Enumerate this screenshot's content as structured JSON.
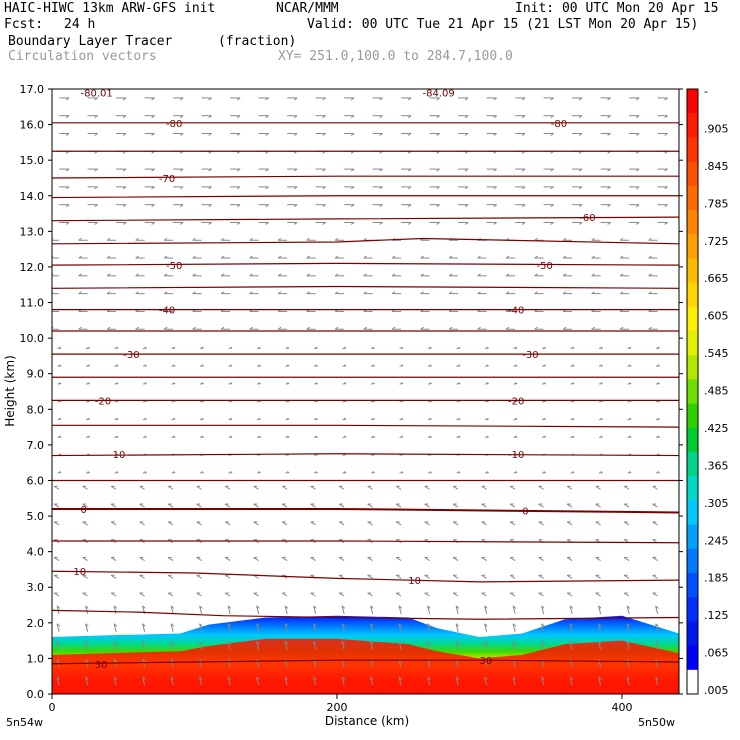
{
  "header": {
    "model": "HAIC-HIWC 13km ARW-GFS init",
    "org": "NCAR/MMM",
    "init": "Init: 00 UTC Mon 20 Apr 15",
    "fcst_label": "Fcst:",
    "fcst_value": "24 h",
    "valid": "Valid: 00 UTC Tue 21 Apr 15 (21 LST Mon 20 Apr 15)",
    "field": "Boundary Layer Tracer",
    "field_units": "(fraction)",
    "overlay": "Circulation vectors",
    "xy": "XY= 251.0,100.0 to 284.7,100.0"
  },
  "chart_data": {
    "type": "heatmap",
    "xlabel": "Distance (km)",
    "ylabel": "Height (km)",
    "xlim": [
      0,
      440
    ],
    "ylim": [
      0,
      17
    ],
    "x_ticks": [
      0,
      200,
      400
    ],
    "y_ticks": [
      "0.0",
      "1.0",
      "2.0",
      "3.0",
      "4.0",
      "5.0",
      "6.0",
      "7.0",
      "8.0",
      "9.0",
      "10.0",
      "11.0",
      "12.0",
      "13.0",
      "14.0",
      "15.0",
      "16.0",
      "17.0"
    ],
    "x_end_labels": {
      "left": "5n54w",
      "right": "5n50w"
    },
    "colorbar": {
      "labels": [
        "-",
        ".905",
        ".845",
        ".785",
        ".725",
        ".665",
        ".605",
        ".545",
        ".485",
        ".425",
        ".365",
        ".305",
        ".245",
        ".185",
        ".125",
        ".065",
        ".005"
      ],
      "colors": [
        "#ff0000",
        "#ff1a00",
        "#ff3300",
        "#ff5000",
        "#ff6a00",
        "#ff8500",
        "#ffa000",
        "#ffbb00",
        "#ffd500",
        "#ffee00",
        "#e0f000",
        "#b0e800",
        "#70dd00",
        "#30d000",
        "#00cc33",
        "#00d48a",
        "#00d8c8",
        "#00c8ff",
        "#00a0ff",
        "#0078ff",
        "#0050ff",
        "#0030ff",
        "#0018f0",
        "#0000ff",
        "#ffffff"
      ]
    },
    "tracer_top_km": [
      {
        "x": 0,
        "top": 1.6,
        "mid": 1.1
      },
      {
        "x": 40,
        "top": 1.65,
        "mid": 1.15
      },
      {
        "x": 90,
        "top": 1.7,
        "mid": 1.2
      },
      {
        "x": 110,
        "top": 1.95,
        "mid": 1.35
      },
      {
        "x": 150,
        "top": 2.15,
        "mid": 1.55
      },
      {
        "x": 200,
        "top": 2.2,
        "mid": 1.55
      },
      {
        "x": 250,
        "top": 2.15,
        "mid": 1.4
      },
      {
        "x": 270,
        "top": 1.85,
        "mid": 1.2
      },
      {
        "x": 300,
        "top": 1.6,
        "mid": 1.0
      },
      {
        "x": 330,
        "top": 1.7,
        "mid": 1.1
      },
      {
        "x": 360,
        "top": 2.1,
        "mid": 1.4
      },
      {
        "x": 400,
        "top": 2.2,
        "mid": 1.5
      },
      {
        "x": 440,
        "top": 1.7,
        "mid": 1.15
      }
    ],
    "temperature_contours": [
      {
        "label": "30",
        "points": [
          [
            0,
            0.85
          ],
          [
            100,
            0.9
          ],
          [
            200,
            0.95
          ],
          [
            300,
            0.95
          ],
          [
            440,
            0.9
          ]
        ],
        "label_positions": [
          [
            30,
            0.85
          ],
          [
            300,
            0.95
          ]
        ]
      },
      {
        "label": "",
        "points": [
          [
            0,
            2.35
          ],
          [
            60,
            2.3
          ],
          [
            120,
            2.2
          ],
          [
            200,
            2.15
          ],
          [
            300,
            2.1
          ],
          [
            440,
            2.15
          ]
        ],
        "label_positions": []
      },
      {
        "label": "10",
        "points": [
          [
            0,
            3.45
          ],
          [
            100,
            3.4
          ],
          [
            200,
            3.25
          ],
          [
            300,
            3.15
          ],
          [
            440,
            3.2
          ]
        ],
        "label_positions": [
          [
            15,
            3.45
          ],
          [
            250,
            3.2
          ]
        ]
      },
      {
        "label": "",
        "points": [
          [
            0,
            4.3
          ],
          [
            200,
            4.3
          ],
          [
            440,
            4.25
          ]
        ],
        "label_positions": []
      },
      {
        "label": "0",
        "points": [
          [
            0,
            5.2
          ],
          [
            200,
            5.2
          ],
          [
            440,
            5.1
          ]
        ],
        "label_positions": [
          [
            20,
            5.2
          ],
          [
            330,
            5.15
          ]
        ]
      },
      {
        "label": "",
        "points": [
          [
            0,
            6.0
          ],
          [
            200,
            6.0
          ],
          [
            440,
            6.0
          ]
        ],
        "label_positions": []
      },
      {
        "label": "-10",
        "points": [
          [
            0,
            6.7
          ],
          [
            200,
            6.75
          ],
          [
            440,
            6.7
          ]
        ],
        "label_positions": [
          [
            40,
            6.75
          ],
          [
            320,
            6.75
          ]
        ]
      },
      {
        "label": "",
        "points": [
          [
            0,
            7.55
          ],
          [
            200,
            7.55
          ],
          [
            440,
            7.5
          ]
        ],
        "label_positions": []
      },
      {
        "label": "-20",
        "points": [
          [
            0,
            8.25
          ],
          [
            200,
            8.25
          ],
          [
            440,
            8.25
          ]
        ],
        "label_positions": [
          [
            30,
            8.25
          ],
          [
            320,
            8.25
          ]
        ]
      },
      {
        "label": "",
        "points": [
          [
            0,
            8.9
          ],
          [
            200,
            8.9
          ],
          [
            440,
            8.9
          ]
        ],
        "label_positions": []
      },
      {
        "label": "-30",
        "points": [
          [
            0,
            9.55
          ],
          [
            200,
            9.55
          ],
          [
            440,
            9.55
          ]
        ],
        "label_positions": [
          [
            50,
            9.55
          ],
          [
            330,
            9.55
          ]
        ]
      },
      {
        "label": "",
        "points": [
          [
            0,
            10.2
          ],
          [
            200,
            10.2
          ],
          [
            440,
            10.2
          ]
        ],
        "label_positions": []
      },
      {
        "label": "-40",
        "points": [
          [
            0,
            10.8
          ],
          [
            200,
            10.8
          ],
          [
            440,
            10.8
          ]
        ],
        "label_positions": [
          [
            75,
            10.8
          ],
          [
            320,
            10.8
          ]
        ]
      },
      {
        "label": "",
        "points": [
          [
            0,
            11.4
          ],
          [
            200,
            11.45
          ],
          [
            440,
            11.4
          ]
        ],
        "label_positions": []
      },
      {
        "label": "-50",
        "points": [
          [
            0,
            12.05
          ],
          [
            200,
            12.1
          ],
          [
            440,
            12.05
          ]
        ],
        "label_positions": [
          [
            80,
            12.05
          ],
          [
            340,
            12.05
          ]
        ]
      },
      {
        "label": "",
        "points": [
          [
            0,
            12.65
          ],
          [
            200,
            12.7
          ],
          [
            260,
            12.8
          ],
          [
            440,
            12.65
          ]
        ],
        "label_positions": []
      },
      {
        "label": "-60",
        "points": [
          [
            0,
            13.3
          ],
          [
            200,
            13.35
          ],
          [
            440,
            13.4
          ]
        ],
        "label_positions": [
          [
            370,
            13.4
          ]
        ]
      },
      {
        "label": "",
        "points": [
          [
            0,
            13.95
          ],
          [
            200,
            14.0
          ],
          [
            440,
            14.0
          ]
        ],
        "label_positions": []
      },
      {
        "label": "-70",
        "points": [
          [
            0,
            14.5
          ],
          [
            200,
            14.55
          ],
          [
            440,
            14.55
          ]
        ],
        "label_positions": [
          [
            75,
            14.5
          ]
        ]
      },
      {
        "label": "",
        "points": [
          [
            0,
            15.25
          ],
          [
            200,
            15.25
          ],
          [
            440,
            15.25
          ]
        ],
        "label_positions": []
      },
      {
        "label": "-80",
        "points": [
          [
            0,
            16.05
          ],
          [
            200,
            16.05
          ],
          [
            440,
            16.05
          ]
        ],
        "label_positions": [
          [
            80,
            16.05
          ],
          [
            350,
            16.05
          ]
        ]
      },
      {
        "label": "-80.01",
        "points": [],
        "label_positions": [
          [
            20,
            16.9
          ]
        ]
      },
      {
        "label": "-84.09",
        "points": [],
        "label_positions": [
          [
            260,
            16.9
          ]
        ]
      }
    ]
  }
}
